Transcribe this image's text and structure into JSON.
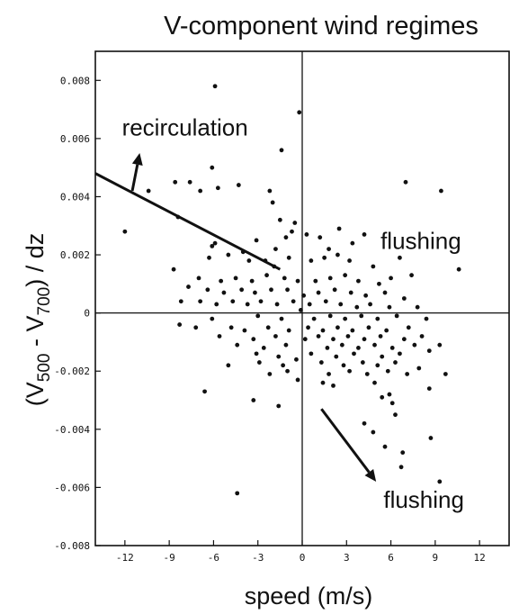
{
  "chart_data": {
    "type": "scatter",
    "title": "V-component wind regimes",
    "xlabel": "speed (m/s)",
    "ylabel": "(V500 - V700) / dz",
    "ylabel_parts": {
      "open": "(V",
      "sub1": "500",
      "mid": " - V",
      "sub2": "700",
      "close": ") / dz"
    },
    "xlim": [
      -14,
      14
    ],
    "ylim": [
      -0.008,
      0.009
    ],
    "x_ticks": [
      -12,
      -9,
      -6,
      -3,
      0,
      3,
      6,
      9,
      12
    ],
    "x_tick_labels": [
      "-12",
      "-9",
      "-6",
      "-3",
      "0",
      "3",
      "6",
      "9",
      "12"
    ],
    "y_ticks": [
      -0.008,
      -0.006,
      -0.004,
      -0.002,
      0,
      0.002,
      0.004,
      0.006,
      0.008
    ],
    "y_tick_labels": [
      "-0.008",
      "-0.006",
      "-0.004",
      "-0.002",
      "0",
      "0.002",
      "0.004",
      "0.006",
      "0.008"
    ],
    "grid": false,
    "reference_lines": [
      {
        "axis": "x",
        "value": 0
      },
      {
        "axis": "y",
        "value": 0
      }
    ],
    "regime_line": {
      "from": [
        -14,
        0.0048
      ],
      "to": [
        -1.5,
        0.0015
      ]
    },
    "annotations": [
      {
        "text": "recirculation",
        "x": -12.2,
        "y": 0.0061
      },
      {
        "text": "flushing",
        "x": 5.3,
        "y": 0.0022
      },
      {
        "text": "flushing",
        "x": 5.5,
        "y": -0.0067
      }
    ],
    "arrows": [
      {
        "from": [
          -11.5,
          0.0042
        ],
        "to": [
          -11.0,
          0.0055
        ]
      },
      {
        "from": [
          1.3,
          -0.0033
        ],
        "to": [
          5.0,
          -0.0058
        ]
      }
    ],
    "points": [
      [
        -5.9,
        0.0078
      ],
      [
        -0.2,
        0.0069
      ],
      [
        -1.4,
        0.0056
      ],
      [
        -6.1,
        0.005
      ],
      [
        -7.6,
        0.0045
      ],
      [
        -8.6,
        0.0045
      ],
      [
        -10.4,
        0.0042
      ],
      [
        -4.3,
        0.0044
      ],
      [
        -5.7,
        0.0043
      ],
      [
        -6.9,
        0.0042
      ],
      [
        -2.2,
        0.0042
      ],
      [
        -2.0,
        0.0038
      ],
      [
        7.0,
        0.0045
      ],
      [
        9.4,
        0.0042
      ],
      [
        -8.4,
        0.0033
      ],
      [
        -1.5,
        0.0032
      ],
      [
        -0.5,
        0.0031
      ],
      [
        -12.0,
        0.0028
      ],
      [
        -5.9,
        0.0024
      ],
      [
        -6.1,
        0.0023
      ],
      [
        -3.1,
        0.0025
      ],
      [
        -0.7,
        0.0028
      ],
      [
        -1.1,
        0.0026
      ],
      [
        0.3,
        0.0027
      ],
      [
        1.2,
        0.0026
      ],
      [
        2.5,
        0.0029
      ],
      [
        4.2,
        0.0027
      ],
      [
        3.4,
        0.0024
      ],
      [
        1.8,
        0.0022
      ],
      [
        -1.8,
        0.0022
      ],
      [
        -4.0,
        0.0021
      ],
      [
        -5.0,
        0.002
      ],
      [
        -6.3,
        0.0019
      ],
      [
        -3.6,
        0.0018
      ],
      [
        -2.5,
        0.0018
      ],
      [
        -1.9,
        0.0016
      ],
      [
        -0.9,
        0.0019
      ],
      [
        0.6,
        0.0018
      ],
      [
        1.5,
        0.0019
      ],
      [
        2.4,
        0.002
      ],
      [
        3.2,
        0.0018
      ],
      [
        4.8,
        0.0016
      ],
      [
        6.6,
        0.0019
      ],
      [
        7.4,
        0.0013
      ],
      [
        10.6,
        0.0015
      ],
      [
        -8.7,
        0.0015
      ],
      [
        -7.0,
        0.0012
      ],
      [
        -5.5,
        0.0011
      ],
      [
        -4.5,
        0.0012
      ],
      [
        -3.4,
        0.0011
      ],
      [
        -2.4,
        0.0013
      ],
      [
        -1.2,
        0.0012
      ],
      [
        -0.3,
        0.0011
      ],
      [
        0.9,
        0.0011
      ],
      [
        1.9,
        0.0012
      ],
      [
        2.9,
        0.0013
      ],
      [
        3.8,
        0.0011
      ],
      [
        5.2,
        0.001
      ],
      [
        6.0,
        0.0012
      ],
      [
        -7.7,
        0.0009
      ],
      [
        -6.4,
        0.0008
      ],
      [
        -5.3,
        0.0007
      ],
      [
        -4.1,
        0.0008
      ],
      [
        -3.2,
        0.0007
      ],
      [
        -2.1,
        0.0008
      ],
      [
        -1.0,
        0.0008
      ],
      [
        0.1,
        0.0006
      ],
      [
        1.1,
        0.0007
      ],
      [
        2.2,
        0.0008
      ],
      [
        3.3,
        0.0007
      ],
      [
        4.3,
        0.0006
      ],
      [
        5.6,
        0.0007
      ],
      [
        6.9,
        0.0005
      ],
      [
        -8.2,
        0.0004
      ],
      [
        -6.9,
        0.0004
      ],
      [
        -5.8,
        0.0003
      ],
      [
        -4.7,
        0.0004
      ],
      [
        -3.7,
        0.0003
      ],
      [
        -2.8,
        0.0004
      ],
      [
        -1.7,
        0.0003
      ],
      [
        -0.6,
        0.0004
      ],
      [
        0.5,
        0.0003
      ],
      [
        1.6,
        0.0004
      ],
      [
        2.6,
        0.0003
      ],
      [
        3.7,
        0.0002
      ],
      [
        4.6,
        0.0003
      ],
      [
        5.9,
        0.0002
      ],
      [
        7.8,
        0.0002
      ],
      [
        -6.1,
        -0.0002
      ],
      [
        -3.0,
        -0.0001
      ],
      [
        -1.4,
        -0.0002
      ],
      [
        -0.1,
        0.0001
      ],
      [
        0.8,
        -0.0002
      ],
      [
        1.9,
        -0.0001
      ],
      [
        2.9,
        -0.0002
      ],
      [
        4.0,
        -0.0001
      ],
      [
        5.1,
        -0.0002
      ],
      [
        6.4,
        -0.0001
      ],
      [
        8.4,
        -0.0002
      ],
      [
        -8.3,
        -0.0004
      ],
      [
        -7.2,
        -0.0005
      ],
      [
        -4.8,
        -0.0005
      ],
      [
        -3.9,
        -0.0006
      ],
      [
        -2.3,
        -0.0005
      ],
      [
        -0.9,
        -0.0006
      ],
      [
        0.4,
        -0.0005
      ],
      [
        1.4,
        -0.0006
      ],
      [
        2.4,
        -0.0005
      ],
      [
        3.4,
        -0.0006
      ],
      [
        4.5,
        -0.0005
      ],
      [
        5.7,
        -0.0006
      ],
      [
        7.2,
        -0.0005
      ],
      [
        -5.6,
        -0.0008
      ],
      [
        -3.3,
        -0.0009
      ],
      [
        -1.8,
        -0.0008
      ],
      [
        0.2,
        -0.0009
      ],
      [
        1.1,
        -0.0008
      ],
      [
        2.1,
        -0.0009
      ],
      [
        3.1,
        -0.0008
      ],
      [
        4.2,
        -0.0009
      ],
      [
        5.3,
        -0.0008
      ],
      [
        6.9,
        -0.0009
      ],
      [
        8.1,
        -0.0008
      ],
      [
        -4.4,
        -0.0011
      ],
      [
        -2.6,
        -0.0012
      ],
      [
        -1.1,
        -0.0011
      ],
      [
        1.7,
        -0.0012
      ],
      [
        2.7,
        -0.0011
      ],
      [
        3.8,
        -0.0012
      ],
      [
        4.9,
        -0.0011
      ],
      [
        6.1,
        -0.0012
      ],
      [
        7.6,
        -0.0011
      ],
      [
        9.3,
        -0.0011
      ],
      [
        -3.1,
        -0.0014
      ],
      [
        -1.6,
        -0.0015
      ],
      [
        0.6,
        -0.0014
      ],
      [
        2.3,
        -0.0015
      ],
      [
        3.5,
        -0.0014
      ],
      [
        5.4,
        -0.0015
      ],
      [
        6.6,
        -0.0014
      ],
      [
        8.6,
        -0.0013
      ],
      [
        -5.0,
        -0.0018
      ],
      [
        -2.9,
        -0.0017
      ],
      [
        -1.3,
        -0.0018
      ],
      [
        -0.4,
        -0.0016
      ],
      [
        1.3,
        -0.0017
      ],
      [
        2.8,
        -0.0018
      ],
      [
        4.1,
        -0.0017
      ],
      [
        5.1,
        -0.0018
      ],
      [
        6.3,
        -0.0017
      ],
      [
        7.9,
        -0.0019
      ],
      [
        -2.2,
        -0.0021
      ],
      [
        -1.0,
        -0.002
      ],
      [
        1.8,
        -0.0021
      ],
      [
        3.2,
        -0.002
      ],
      [
        4.4,
        -0.0021
      ],
      [
        5.8,
        -0.002
      ],
      [
        7.1,
        -0.0021
      ],
      [
        9.7,
        -0.0021
      ],
      [
        -0.3,
        -0.0023
      ],
      [
        1.4,
        -0.0024
      ],
      [
        2.1,
        -0.0025
      ],
      [
        4.9,
        -0.0024
      ],
      [
        8.6,
        -0.0026
      ],
      [
        -6.6,
        -0.0027
      ],
      [
        -3.3,
        -0.003
      ],
      [
        -1.6,
        -0.0032
      ],
      [
        5.9,
        -0.0028
      ],
      [
        6.1,
        -0.0031
      ],
      [
        5.4,
        -0.0029
      ],
      [
        4.2,
        -0.0038
      ],
      [
        4.8,
        -0.0041
      ],
      [
        6.3,
        -0.0035
      ],
      [
        8.7,
        -0.0043
      ],
      [
        5.6,
        -0.0046
      ],
      [
        6.8,
        -0.0048
      ],
      [
        6.7,
        -0.0053
      ],
      [
        9.3,
        -0.0058
      ],
      [
        -4.4,
        -0.0062
      ]
    ]
  }
}
